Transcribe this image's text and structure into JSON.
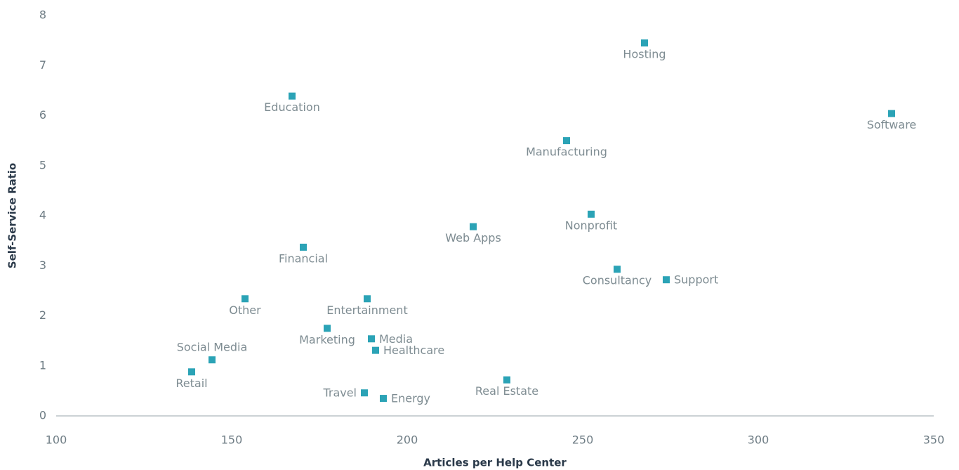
{
  "chart_data": {
    "type": "scatter",
    "x_label": "Articles per Help Center",
    "y_label": "Self-Service Ratio",
    "series": [
      {
        "color": "#2ba3b6",
        "labels": [
          "Hosting",
          "Software",
          "Education",
          "Manufacturing",
          "Nonprofit",
          "Web Apps",
          "Financial",
          "Consultancy",
          "Support",
          "Other",
          "Entertainment",
          "Marketing",
          "Media",
          "Healthcare",
          "Social Media",
          "Retail",
          "Real Estate",
          "Travel",
          "Energy"
        ],
        "x": [
          267.6,
          338,
          167.2,
          245.4,
          252.4,
          218.8,
          170.4,
          259.8,
          273.8,
          153.8,
          188.6,
          177.2,
          189.8,
          191,
          144.4,
          138.6,
          228.4,
          187.8,
          193.2
        ],
        "values": [
          7.45,
          6.04,
          6.39,
          5.5,
          4.03,
          3.78,
          3.37,
          2.93,
          2.72,
          2.34,
          2.34,
          1.75,
          1.54,
          1.31,
          1.12,
          0.88,
          0.72,
          0.46,
          0.35
        ]
      }
    ],
    "xlim": [
      100,
      350
    ],
    "xticks": [
      100,
      150,
      200,
      250,
      300,
      350
    ],
    "ylim": [
      0,
      8
    ],
    "yticks": [
      0,
      1,
      2,
      3,
      4,
      5,
      6,
      7,
      8
    ],
    "grid": false
  }
}
